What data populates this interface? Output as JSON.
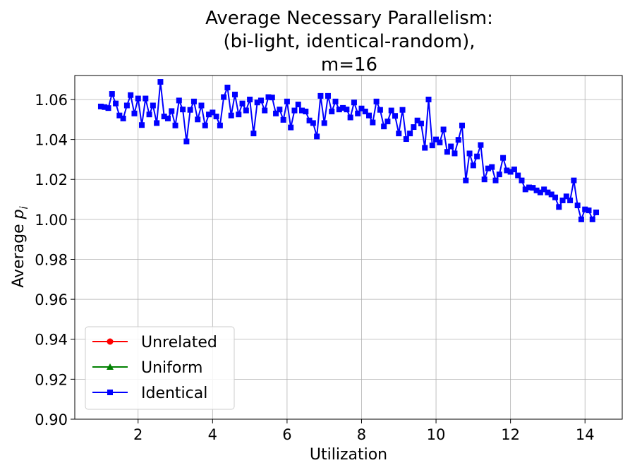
{
  "chart_data": {
    "type": "line",
    "title_lines": [
      "Average Necessary Parallelism:",
      "(bi-light, identical-random),",
      "m=16"
    ],
    "xlabel": "Utilization",
    "ylabel_main": "Average ",
    "ylabel_var": "p",
    "ylabel_sub": "i",
    "xlim": [
      0.3,
      15.0
    ],
    "ylim": [
      0.9,
      1.072
    ],
    "xticks": [
      2,
      4,
      6,
      8,
      10,
      12,
      14
    ],
    "xtick_labels": [
      "2",
      "4",
      "6",
      "8",
      "10",
      "12",
      "14"
    ],
    "yticks": [
      0.9,
      0.92,
      0.94,
      0.96,
      0.98,
      1.0,
      1.02,
      1.04,
      1.06
    ],
    "ytick_labels": [
      "0.90",
      "0.92",
      "0.94",
      "0.96",
      "0.98",
      "1.00",
      "1.02",
      "1.04",
      "1.06"
    ],
    "grid": true,
    "legend_position": "lower-left",
    "series": [
      {
        "name": "Unrelated",
        "color": "#ff0000",
        "marker": "circle",
        "x": [],
        "y": []
      },
      {
        "name": "Uniform",
        "color": "#008000",
        "marker": "triangle",
        "x": [],
        "y": []
      },
      {
        "name": "Identical",
        "color": "#0000ff",
        "marker": "square",
        "x": [
          1.0,
          1.1,
          1.2,
          1.3,
          1.4,
          1.5,
          1.6,
          1.7,
          1.8,
          1.9,
          2.0,
          2.1,
          2.2,
          2.3,
          2.4,
          2.5,
          2.6,
          2.7,
          2.8,
          2.9,
          3.0,
          3.1,
          3.2,
          3.3,
          3.4,
          3.5,
          3.6,
          3.7,
          3.8,
          3.9,
          4.0,
          4.1,
          4.2,
          4.3,
          4.4,
          4.5,
          4.6,
          4.7,
          4.8,
          4.9,
          5.0,
          5.1,
          5.2,
          5.3,
          5.4,
          5.5,
          5.6,
          5.7,
          5.8,
          5.9,
          6.0,
          6.1,
          6.2,
          6.3,
          6.4,
          6.5,
          6.6,
          6.7,
          6.8,
          6.9,
          7.0,
          7.1,
          7.2,
          7.3,
          7.4,
          7.5,
          7.6,
          7.7,
          7.8,
          7.9,
          8.0,
          8.1,
          8.2,
          8.3,
          8.4,
          8.5,
          8.6,
          8.7,
          8.8,
          8.9,
          9.0,
          9.1,
          9.2,
          9.3,
          9.4,
          9.5,
          9.6,
          9.7,
          9.8,
          9.9,
          10.0,
          10.1,
          10.2,
          10.3,
          10.4,
          10.5,
          10.6,
          10.7,
          10.8,
          10.9,
          11.0,
          11.1,
          11.2,
          11.3,
          11.4,
          11.5,
          11.6,
          11.7,
          11.8,
          11.9,
          12.0,
          12.1,
          12.2,
          12.3,
          12.4,
          12.5,
          12.6,
          12.7,
          12.8,
          12.9,
          13.0,
          13.1,
          13.2,
          13.3,
          13.4,
          13.5,
          13.6,
          13.7,
          13.8,
          13.9,
          14.0,
          14.1,
          14.2,
          14.3
        ],
        "y": [
          1.0565,
          1.0562,
          1.0557,
          1.0628,
          1.058,
          1.052,
          1.0505,
          1.057,
          1.0622,
          1.053,
          1.0605,
          1.0472,
          1.0605,
          1.0525,
          1.057,
          1.0482,
          1.0688,
          1.0515,
          1.0505,
          1.0542,
          1.047,
          1.0595,
          1.055,
          1.039,
          1.0548,
          1.059,
          1.05,
          1.057,
          1.047,
          1.0525,
          1.0535,
          1.0515,
          1.047,
          1.0612,
          1.066,
          1.052,
          1.0625,
          1.0525,
          1.058,
          1.0545,
          1.06,
          1.043,
          1.0585,
          1.0595,
          1.0545,
          1.0612,
          1.061,
          1.053,
          1.055,
          1.0498,
          1.059,
          1.046,
          1.0545,
          1.0575,
          1.0545,
          1.054,
          1.0495,
          1.0482,
          1.0415,
          1.0618,
          1.0482,
          1.0618,
          1.054,
          1.059,
          1.055,
          1.0558,
          1.055,
          1.051,
          1.0585,
          1.053,
          1.0555,
          1.054,
          1.052,
          1.0485,
          1.059,
          1.0548,
          1.0465,
          1.049,
          1.0545,
          1.0518,
          1.043,
          1.0548,
          1.0402,
          1.043,
          1.0462,
          1.0495,
          1.048,
          1.0358,
          1.06,
          1.037,
          1.04,
          1.0385,
          1.045,
          1.0338,
          1.0365,
          1.033,
          1.0398,
          1.047,
          1.0195,
          1.033,
          1.027,
          1.0315,
          1.0372,
          1.02,
          1.0255,
          1.0262,
          1.0195,
          1.0225,
          1.0308,
          1.0245,
          1.0238,
          1.025,
          1.022,
          1.0195,
          1.015,
          1.016,
          1.0158,
          1.0145,
          1.0135,
          1.015,
          1.0135,
          1.0125,
          1.011,
          1.0062,
          1.0095,
          1.0115,
          1.0095,
          1.0195,
          1.007,
          1.0,
          1.005,
          1.0045,
          1.0,
          1.0035
        ]
      }
    ]
  }
}
